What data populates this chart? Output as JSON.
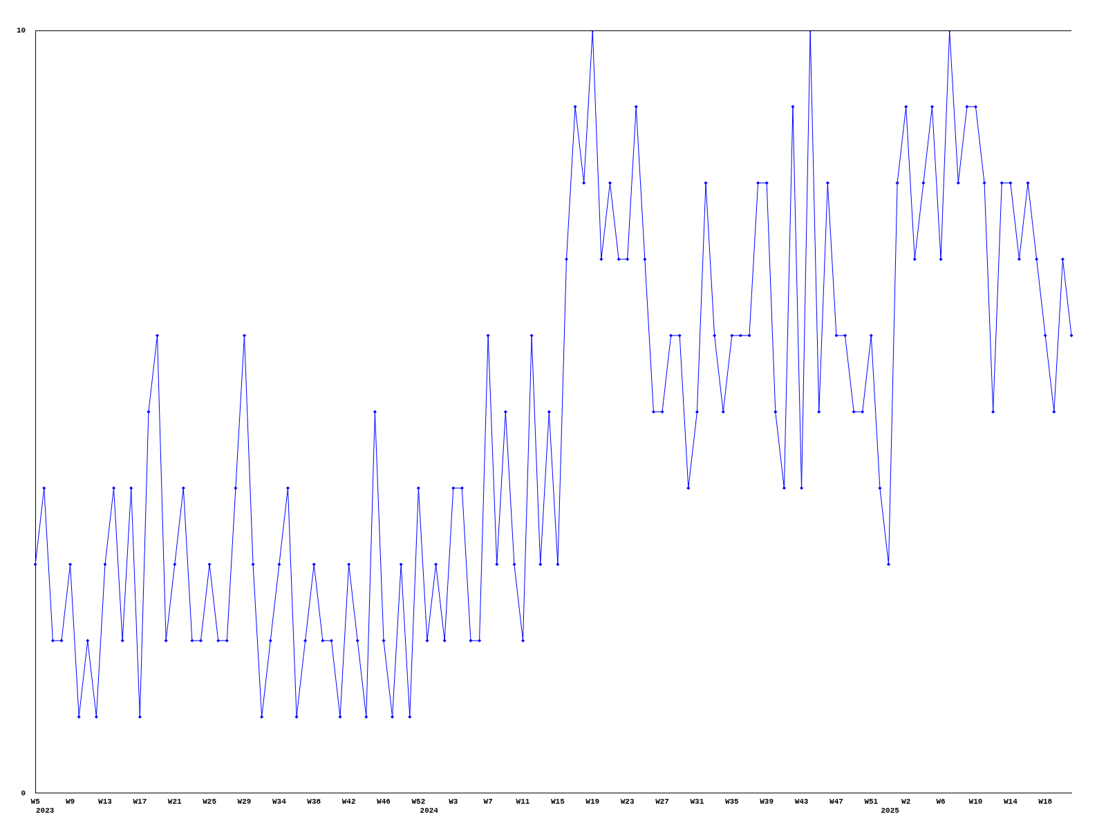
{
  "chart_data": {
    "type": "line",
    "categories": [
      "W5",
      null,
      null,
      null,
      "W9",
      null,
      null,
      null,
      "W13",
      null,
      null,
      null,
      "W17",
      null,
      null,
      null,
      "W21",
      null,
      null,
      null,
      "W25",
      null,
      null,
      null,
      "W29",
      null,
      null,
      null,
      "W34",
      null,
      null,
      null,
      "W38",
      null,
      null,
      null,
      "W42",
      null,
      null,
      null,
      "W46",
      null,
      null,
      null,
      "W52",
      null,
      null,
      null,
      "W3",
      null,
      null,
      null,
      "W7",
      null,
      null,
      null,
      "W11",
      null,
      null,
      null,
      "W15",
      null,
      null,
      null,
      "W19",
      null,
      null,
      null,
      "W23",
      null,
      null,
      null,
      "W27",
      null,
      null,
      null,
      "W31",
      null,
      null,
      null,
      "W35",
      null,
      null,
      null,
      "W39",
      null,
      null,
      null,
      "W43",
      null,
      null,
      null,
      "W47",
      null,
      null,
      null,
      "W51",
      null,
      null,
      null,
      "W2",
      null,
      null,
      null,
      "W6",
      null,
      null,
      null,
      "W10",
      null,
      null,
      null,
      "W14",
      null,
      null,
      null,
      "W18",
      null,
      null,
      null
    ],
    "series": [
      {
        "color": "#0000ff",
        "values": [
          3,
          4,
          2,
          2,
          3,
          1,
          2,
          1,
          3,
          4,
          2,
          4,
          1,
          5,
          6,
          2,
          3,
          4,
          2,
          2,
          3,
          2,
          2,
          4,
          6,
          3,
          1,
          2,
          3,
          4,
          1,
          2,
          3,
          2,
          2,
          1,
          3,
          2,
          1,
          5,
          2,
          1,
          3,
          1,
          4,
          2,
          3,
          2,
          4,
          4,
          2,
          2,
          6,
          3,
          5,
          3,
          2,
          6,
          3,
          5,
          3,
          7,
          9,
          8,
          10,
          7,
          8,
          7,
          7,
          9,
          7,
          5,
          5,
          6,
          6,
          4,
          5,
          8,
          6,
          5,
          6,
          6,
          6,
          8,
          8,
          5,
          4,
          9,
          4,
          10,
          5,
          8,
          6,
          6,
          5,
          5,
          6,
          4,
          3,
          8,
          9,
          7,
          8,
          9,
          7,
          10,
          8,
          9,
          9,
          8,
          5,
          8,
          8,
          7,
          8,
          7,
          6,
          5,
          7,
          6
        ]
      }
    ],
    "ylim": [
      0,
      10
    ],
    "yticks": [
      0,
      10
    ],
    "grid": false,
    "legend": false,
    "marker": "diamond",
    "line_style": "solid",
    "annotations": [
      "2023",
      "2024",
      "2025"
    ]
  }
}
